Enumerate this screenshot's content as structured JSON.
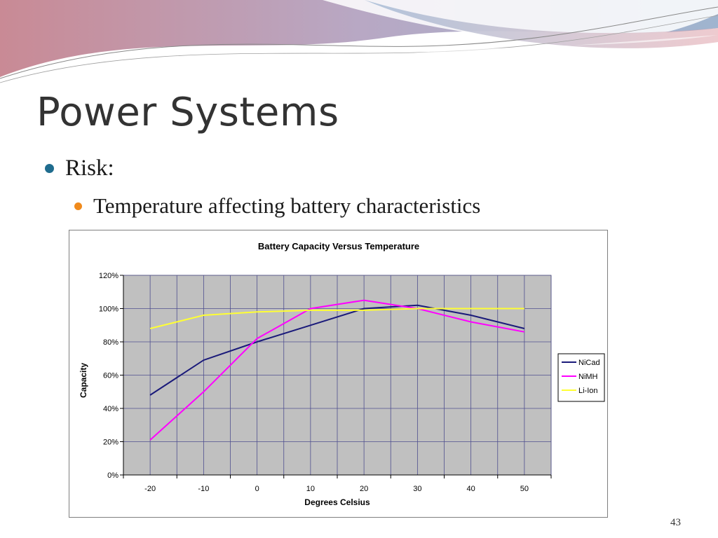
{
  "slide": {
    "title": "Power Systems",
    "bullets": [
      {
        "text": "Risk:",
        "level": 1
      },
      {
        "text": "Temperature affecting battery characteristics",
        "level": 2
      }
    ],
    "page_number": "43"
  },
  "colors": {
    "title": "#333333",
    "bullet1": "#1f6c8e",
    "bullet2": "#f08a1c",
    "plot_bg": "#c0c0c0",
    "grid": "#4f4f8f"
  },
  "chart_data": {
    "type": "line",
    "title": "Battery Capacity Versus Temperature",
    "xlabel": "Degrees Celsius",
    "ylabel": "Capacity",
    "x": [
      -20,
      -10,
      0,
      10,
      20,
      30,
      40,
      50
    ],
    "xlim": [
      -20,
      50
    ],
    "ylim": [
      0,
      120
    ],
    "yticks": [
      "0%",
      "20%",
      "40%",
      "60%",
      "80%",
      "100%",
      "120%"
    ],
    "grid": true,
    "legend_position": "right",
    "series": [
      {
        "name": "NiCad",
        "color": "#1a1a7a",
        "values": [
          48,
          69,
          80,
          90,
          100,
          102,
          96,
          88
        ]
      },
      {
        "name": "NiMH",
        "color": "#ff00ff",
        "values": [
          21,
          50,
          82,
          100,
          105,
          100,
          92,
          86
        ]
      },
      {
        "name": "Li-Ion",
        "color": "#ffff33",
        "values": [
          88,
          96,
          98,
          99,
          99,
          100,
          100,
          100
        ]
      }
    ]
  }
}
